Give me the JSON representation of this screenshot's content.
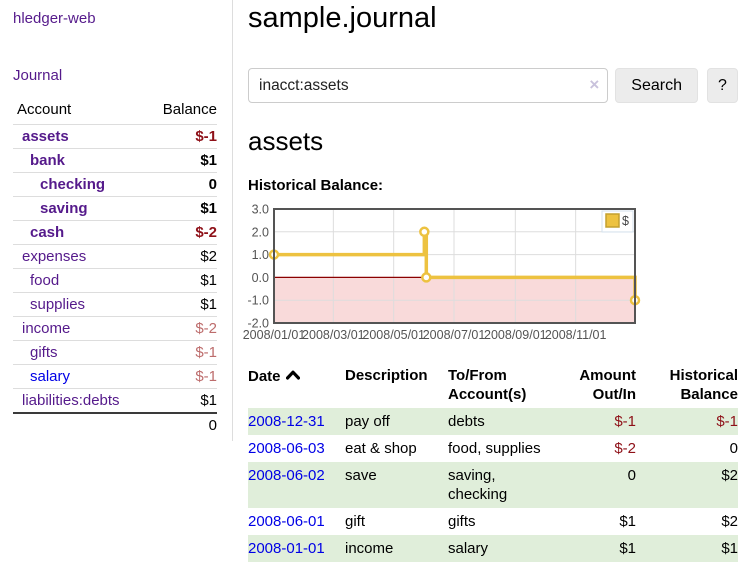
{
  "app_title": "hledger-web",
  "sidebar": {
    "journal_link": "Journal",
    "accounts": {
      "header": {
        "account": "Account",
        "balance": "Balance"
      },
      "rows": [
        {
          "name": "assets",
          "balance": "$-1",
          "level": 1,
          "bold": true,
          "balance_style": "neg",
          "link_style": "visited"
        },
        {
          "name": "bank",
          "balance": "$1",
          "level": 2,
          "bold": true,
          "balance_style": "plain",
          "link_style": "visited"
        },
        {
          "name": "checking",
          "balance": "0",
          "level": 3,
          "bold": true,
          "balance_style": "plain",
          "link_style": "visited"
        },
        {
          "name": "saving",
          "balance": "$1",
          "level": 3,
          "bold": true,
          "balance_style": "plain",
          "link_style": "visited"
        },
        {
          "name": "cash",
          "balance": "$-2",
          "level": 2,
          "bold": true,
          "balance_style": "neg",
          "link_style": "visited"
        },
        {
          "name": "expenses",
          "balance": "$2",
          "level": 1,
          "bold": false,
          "balance_style": "plain",
          "link_style": "visited"
        },
        {
          "name": "food",
          "balance": "$1",
          "level": 2,
          "bold": false,
          "balance_style": "plain",
          "link_style": "visited"
        },
        {
          "name": "supplies",
          "balance": "$1",
          "level": 2,
          "bold": false,
          "balance_style": "plain",
          "link_style": "visited"
        },
        {
          "name": "income",
          "balance": "$-2",
          "level": 1,
          "bold": false,
          "balance_style": "neg-muted",
          "link_style": "visited"
        },
        {
          "name": "gifts",
          "balance": "$-1",
          "level": 2,
          "bold": false,
          "balance_style": "neg-muted",
          "link_style": "visited"
        },
        {
          "name": "salary",
          "balance": "$-1",
          "level": 2,
          "bold": false,
          "balance_style": "neg-muted",
          "link_style": "unvisited"
        },
        {
          "name": "liabilities:debts",
          "balance": "$1",
          "level": 1,
          "bold": false,
          "balance_style": "plain",
          "link_style": "visited"
        }
      ],
      "total": "0"
    }
  },
  "main": {
    "title": "sample.journal",
    "search": {
      "value": "inacct:assets",
      "clear_icon": "×",
      "search_button": "Search",
      "help_button": "?"
    },
    "account_title": "assets",
    "chart_heading": "Historical Balance:"
  },
  "chart_data": {
    "type": "line",
    "step": true,
    "title": "Historical Balance",
    "series": [
      {
        "name": "$",
        "color": "#edc240",
        "points": [
          {
            "date": "2008-01-01",
            "value": 1
          },
          {
            "date": "2008-06-01",
            "value": 2
          },
          {
            "date": "2008-06-03",
            "value": 0
          },
          {
            "date": "2008-12-31",
            "value": -1
          }
        ]
      }
    ],
    "x_start": "2008-01-01",
    "x_end": "2008-12-31",
    "x_tick_dates": [
      "2008-01-01",
      "2008-03-01",
      "2008-05-01",
      "2008-07-01",
      "2008-09-01",
      "2008-11-01"
    ],
    "x_tick_labels": [
      "2008/01/01",
      "2008/03/01",
      "2008/05/01",
      "2008/07/01",
      "2008/09/01",
      "2008/11/01"
    ],
    "y_ticks": [
      3,
      2,
      1,
      0,
      -1,
      -2
    ],
    "y_tick_labels": [
      "3.0",
      "2.0",
      "1.0",
      "0.0",
      "-1.0",
      "-2.0"
    ],
    "ylim": [
      -2,
      3
    ],
    "legend": {
      "label": "$",
      "position": "top-right"
    },
    "colors": {
      "series": "#edc240",
      "marker_fill": "#ffffff",
      "negative_fill": "#f9dada",
      "zero_line": "#8b0000",
      "grid": "#dddddd",
      "border": "#545454",
      "tick_text": "#545454"
    }
  },
  "register": {
    "headers": {
      "date": "Date",
      "description": "Description",
      "account": "To/From Account(s)",
      "amount": "Amount Out/In",
      "balance": "Historical Balance"
    },
    "sort": {
      "column": "date",
      "direction": "ascending"
    },
    "rows": [
      {
        "date": "2008-12-31",
        "description": "pay off",
        "accounts": "debts",
        "amount": "$-1",
        "amount_style": "neg",
        "balance": "$-1",
        "balance_style": "neg",
        "shaded": true
      },
      {
        "date": "2008-06-03",
        "description": "eat & shop",
        "accounts": "food, supplies",
        "amount": "$-2",
        "amount_style": "neg",
        "balance": "0",
        "balance_style": "plain",
        "shaded": false
      },
      {
        "date": "2008-06-02",
        "description": "save",
        "accounts": "saving, checking",
        "amount": "0",
        "amount_style": "plain",
        "balance": "$2",
        "balance_style": "plain",
        "shaded": true
      },
      {
        "date": "2008-06-01",
        "description": "gift",
        "accounts": "gifts",
        "amount": "$1",
        "amount_style": "plain",
        "balance": "$2",
        "balance_style": "plain",
        "shaded": false
      },
      {
        "date": "2008-01-01",
        "description": "income",
        "accounts": "salary",
        "amount": "$1",
        "amount_style": "plain",
        "balance": "$1",
        "balance_style": "plain",
        "shaded": true
      }
    ]
  }
}
